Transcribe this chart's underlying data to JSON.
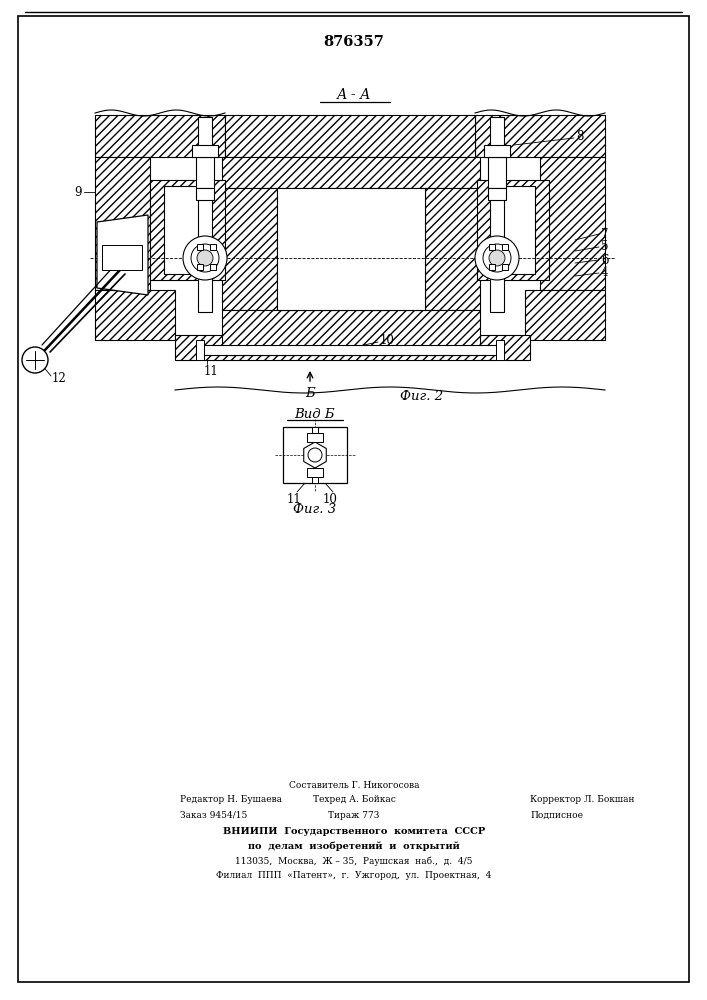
{
  "patent_number": "876357",
  "title_aa": "А - А",
  "fig2_label": "Фиг. 2",
  "fig3_label": "Фиг. 3",
  "vid_b_label": "Вид Б",
  "b_arrow_label": "Б",
  "footer_line1": "Составитель Г. Никогосова",
  "footer_line2_left": "Редактор Н. Бушаева",
  "footer_line2_mid": "Техред А. Бойкас",
  "footer_line2_right": "Корректор Л. Бокшан",
  "footer_line3_left": "Заказ 9454/15",
  "footer_line3_mid": "Тираж 773",
  "footer_line3_right": "Подписное",
  "footer_line4": "ВНИИПИ  Государственного  комитета  СССР",
  "footer_line5": "по  делам  изобретений  и  открытий",
  "footer_line6": "113035,  Москва,  Ж – 35,  Раушская  наб.,  д.  4/5",
  "footer_line7": "Филиал  ППП  «Патент»,  г.  Ужгород,  ул.  Проектная,  4"
}
